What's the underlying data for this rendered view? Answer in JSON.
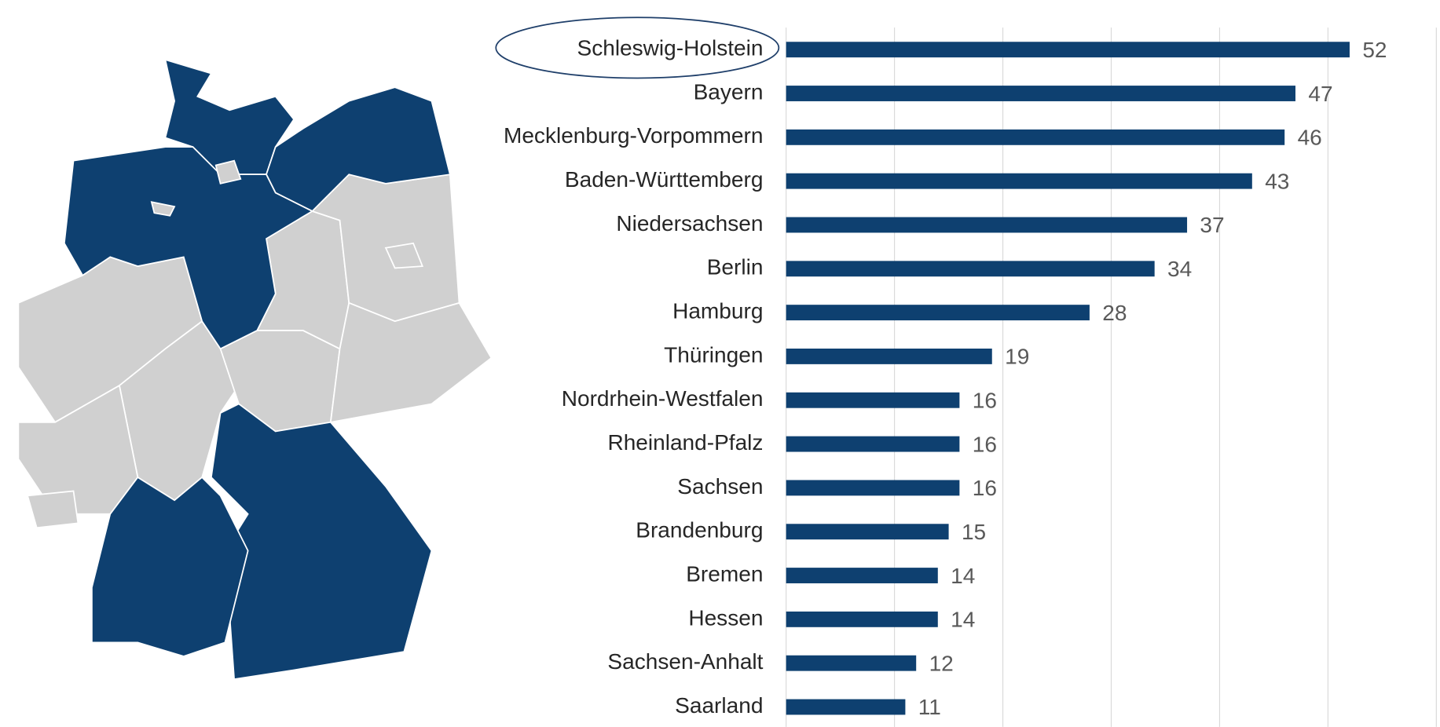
{
  "chart_data": {
    "type": "bar",
    "orientation": "horizontal",
    "categories": [
      "Schleswig-Holstein",
      "Bayern",
      "Mecklenburg-Vorpommern",
      "Baden-Württemberg",
      "Niedersachsen",
      "Berlin",
      "Hamburg",
      "Thüringen",
      "Nordrhein-Westfalen",
      "Rheinland-Pfalz",
      "Sachsen",
      "Brandenburg",
      "Bremen",
      "Hessen",
      "Sachsen-Anhalt",
      "Saarland"
    ],
    "values": [
      52,
      47,
      46,
      43,
      37,
      34,
      28,
      19,
      16,
      16,
      16,
      15,
      14,
      14,
      12,
      11
    ],
    "color": "#0e4070",
    "xlim": [
      0,
      60
    ],
    "xticks": [
      0,
      10,
      20,
      30,
      40,
      50,
      60
    ],
    "grid": true
  }
}
